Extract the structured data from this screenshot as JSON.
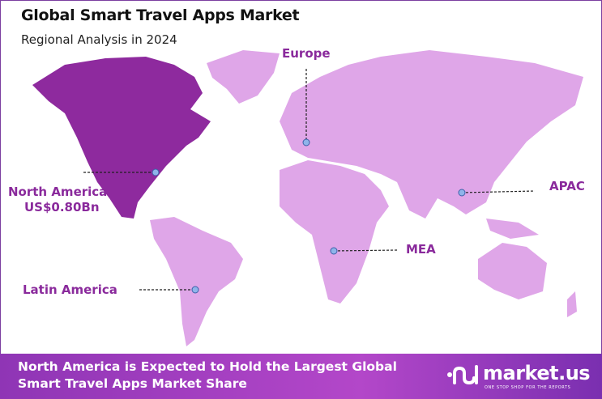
{
  "header": {
    "title": "Global Smart Travel Apps Market",
    "subtitle": "Regional Analysis in 2024"
  },
  "map": {
    "highlight_color": "#8e2a9e",
    "base_color": "#dfa6e8",
    "regions": [
      {
        "name": "North America",
        "value": "US$0.80Bn",
        "highlighted": true
      },
      {
        "name": "Europe",
        "highlighted": false
      },
      {
        "name": "APAC",
        "highlighted": false
      },
      {
        "name": "MEA",
        "highlighted": false
      },
      {
        "name": "Latin America",
        "highlighted": false
      }
    ]
  },
  "footer": {
    "text_line1": "North America is Expected to Hold the Largest Global",
    "text_line2": "Smart Travel Apps Market Share",
    "logo_name": "market.us",
    "logo_tagline": "ONE STOP SHOP FOR THE REPORTS"
  }
}
